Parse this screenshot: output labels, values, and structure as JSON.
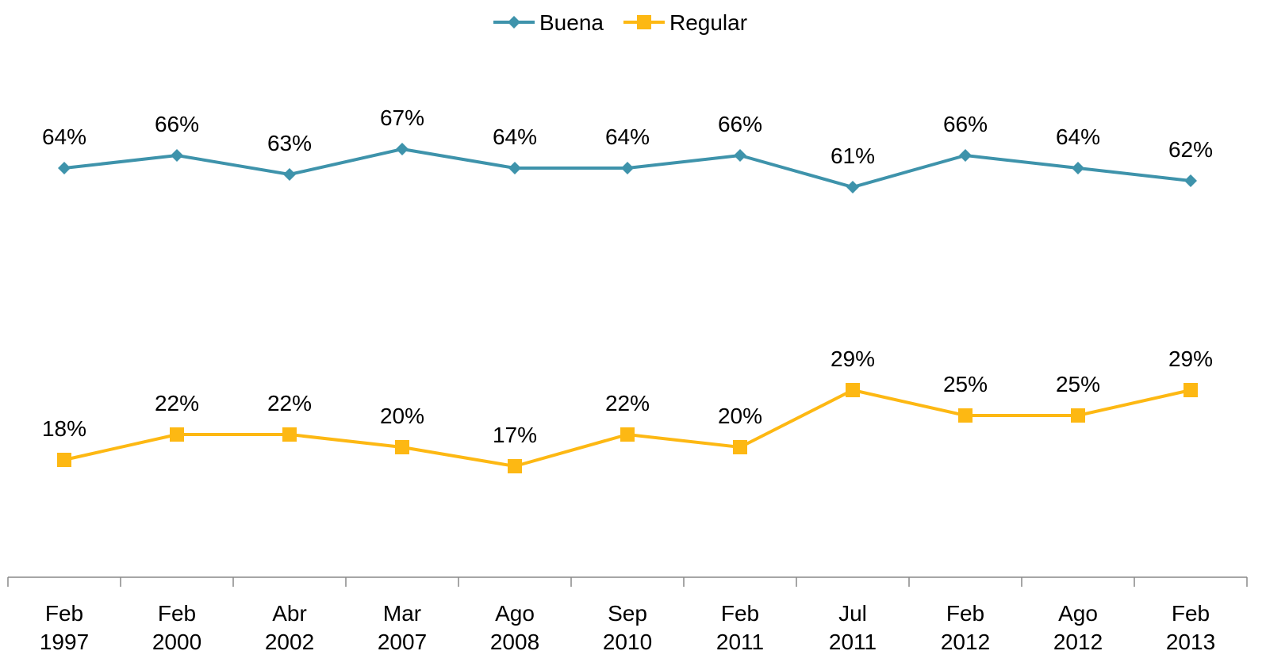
{
  "chart_data": {
    "type": "line",
    "categories": [
      "Feb 1997",
      "Feb 2000",
      "Abr 2002",
      "Mar 2007",
      "Ago 2008",
      "Sep 2010",
      "Feb 2011",
      "Jul 2011",
      "Feb 2012",
      "Ago 2012",
      "Feb 2013"
    ],
    "series": [
      {
        "name": "Buena",
        "color": "#3e93ab",
        "marker": "diamond",
        "values": [
          64,
          66,
          63,
          67,
          64,
          64,
          66,
          61,
          66,
          64,
          62
        ],
        "value_labels": [
          "64%",
          "66%",
          "63%",
          "67%",
          "64%",
          "64%",
          "66%",
          "61%",
          "66%",
          "64%",
          "62%"
        ]
      },
      {
        "name": "Regular",
        "color": "#fdb813",
        "marker": "square",
        "values": [
          18,
          22,
          22,
          20,
          17,
          22,
          20,
          29,
          25,
          25,
          29
        ],
        "value_labels": [
          "18%",
          "22%",
          "22%",
          "20%",
          "17%",
          "22%",
          "20%",
          "29%",
          "25%",
          "25%",
          "29%"
        ]
      }
    ],
    "ylim": [
      0,
      80
    ],
    "legend": "top"
  }
}
